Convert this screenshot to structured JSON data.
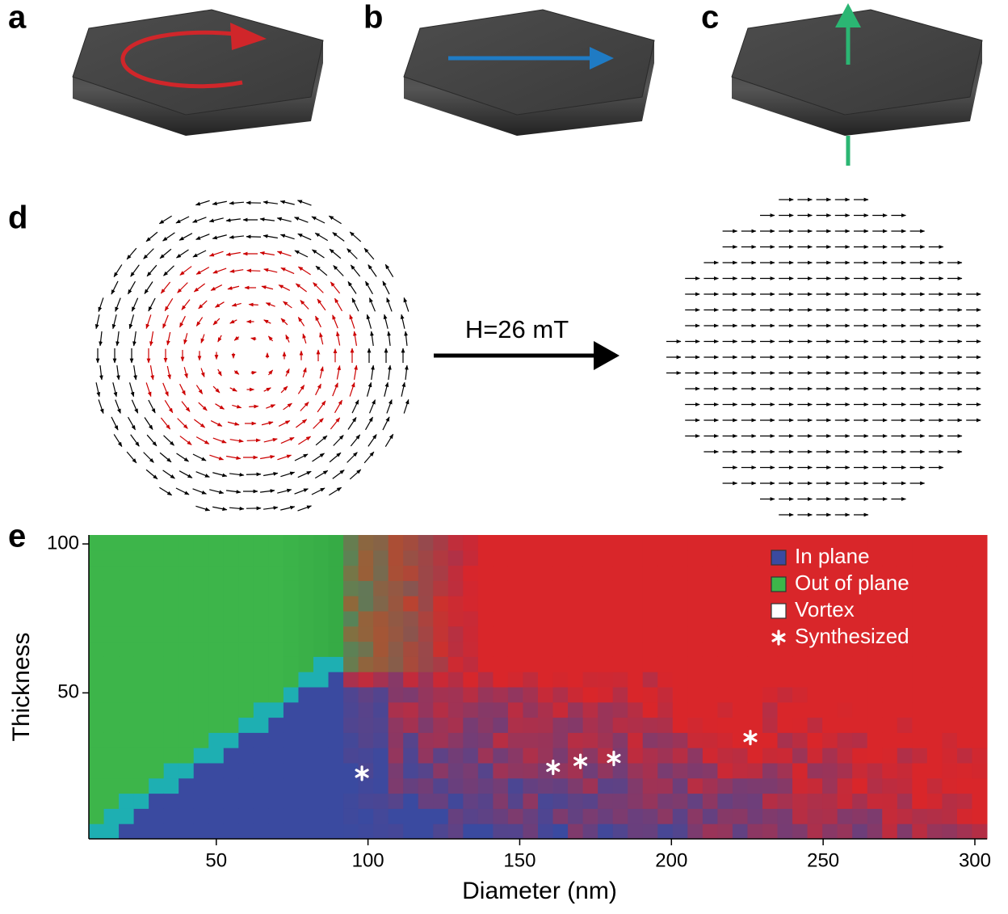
{
  "panels": {
    "a": {
      "label": "a"
    },
    "b": {
      "label": "b"
    },
    "c": {
      "label": "c"
    },
    "d": {
      "label": "d",
      "field_label": "H=26 mT"
    },
    "e": {
      "label": "e"
    }
  },
  "chart_data": {
    "type": "scatter",
    "x_label": "Diameter (nm)",
    "y_label": "Thickness",
    "xlim": [
      8,
      304
    ],
    "ylim": [
      1,
      103
    ],
    "xticks": [
      50,
      100,
      150,
      200,
      250,
      300
    ],
    "yticks": [
      50,
      100
    ],
    "phases": [
      {
        "name": "In plane",
        "color": "#3a4aa0",
        "legend_swatch": "#3a4aa0"
      },
      {
        "name": "Out of plane",
        "color": "#3db54a",
        "legend_swatch": "#3db54a"
      },
      {
        "name": "Vortex",
        "color": "#d9262a",
        "legend_swatch": "#ffffff"
      }
    ],
    "series": [
      {
        "name": "Synthesized",
        "color": "#ffffff",
        "x": [
          98,
          161,
          170,
          181,
          226
        ],
        "values": [
          23,
          25,
          27,
          28,
          35
        ]
      }
    ]
  }
}
